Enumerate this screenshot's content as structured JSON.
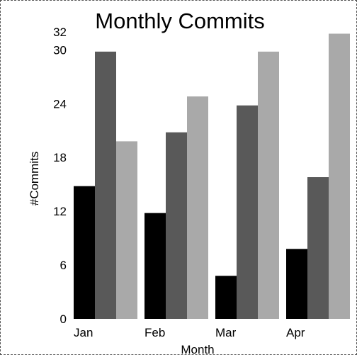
{
  "chart_data": {
    "type": "bar",
    "title": "Monthly Commits",
    "xlabel": "Month",
    "ylabel": "#Commits",
    "categories": [
      "Jan",
      "Feb",
      "Mar",
      "Apr"
    ],
    "series": [
      {
        "values": [
          14.8,
          11.8,
          4.8,
          7.8
        ],
        "color": "#000000"
      },
      {
        "values": [
          29.8,
          20.8,
          23.8,
          15.8
        ],
        "color": "#595959"
      },
      {
        "values": [
          19.8,
          24.8,
          29.8,
          31.8
        ],
        "color": "#a9a9a9"
      }
    ],
    "yticks": [
      0,
      6,
      12,
      18,
      24,
      30,
      32
    ],
    "ylim": [
      0,
      32
    ],
    "grid": false,
    "legend": "none"
  }
}
